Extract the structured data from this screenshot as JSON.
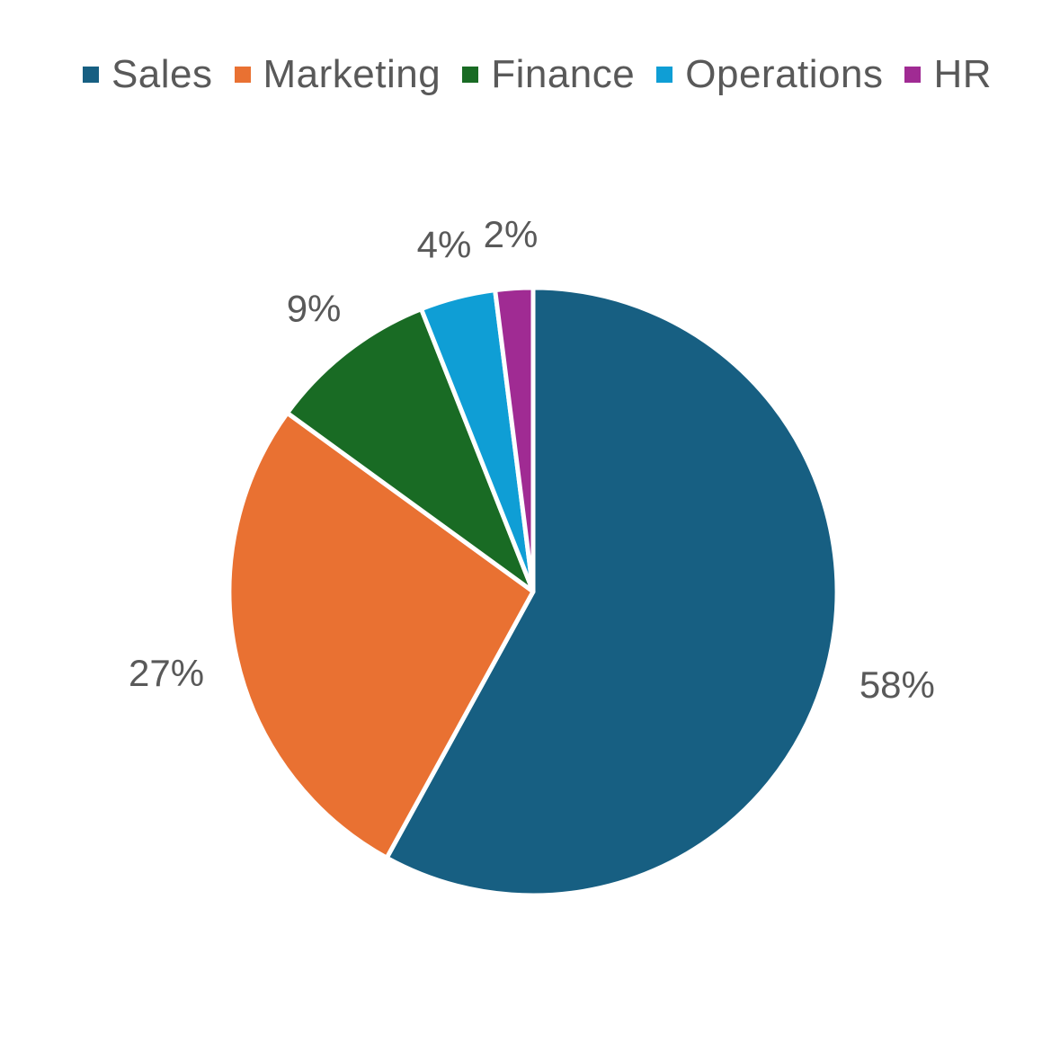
{
  "chart_data": {
    "type": "pie",
    "title": "",
    "categories": [
      "Sales",
      "Marketing",
      "Finance",
      "Operations",
      "HR"
    ],
    "values": [
      58,
      27,
      9,
      4,
      2
    ],
    "labels": [
      "58%",
      "27%",
      "9%",
      "4%",
      "2%"
    ],
    "colors": [
      "#175f82",
      "#e97132",
      "#196b24",
      "#0f9ed5",
      "#a02b93"
    ],
    "legend_position": "top",
    "start_angle": "top, clockwise"
  }
}
